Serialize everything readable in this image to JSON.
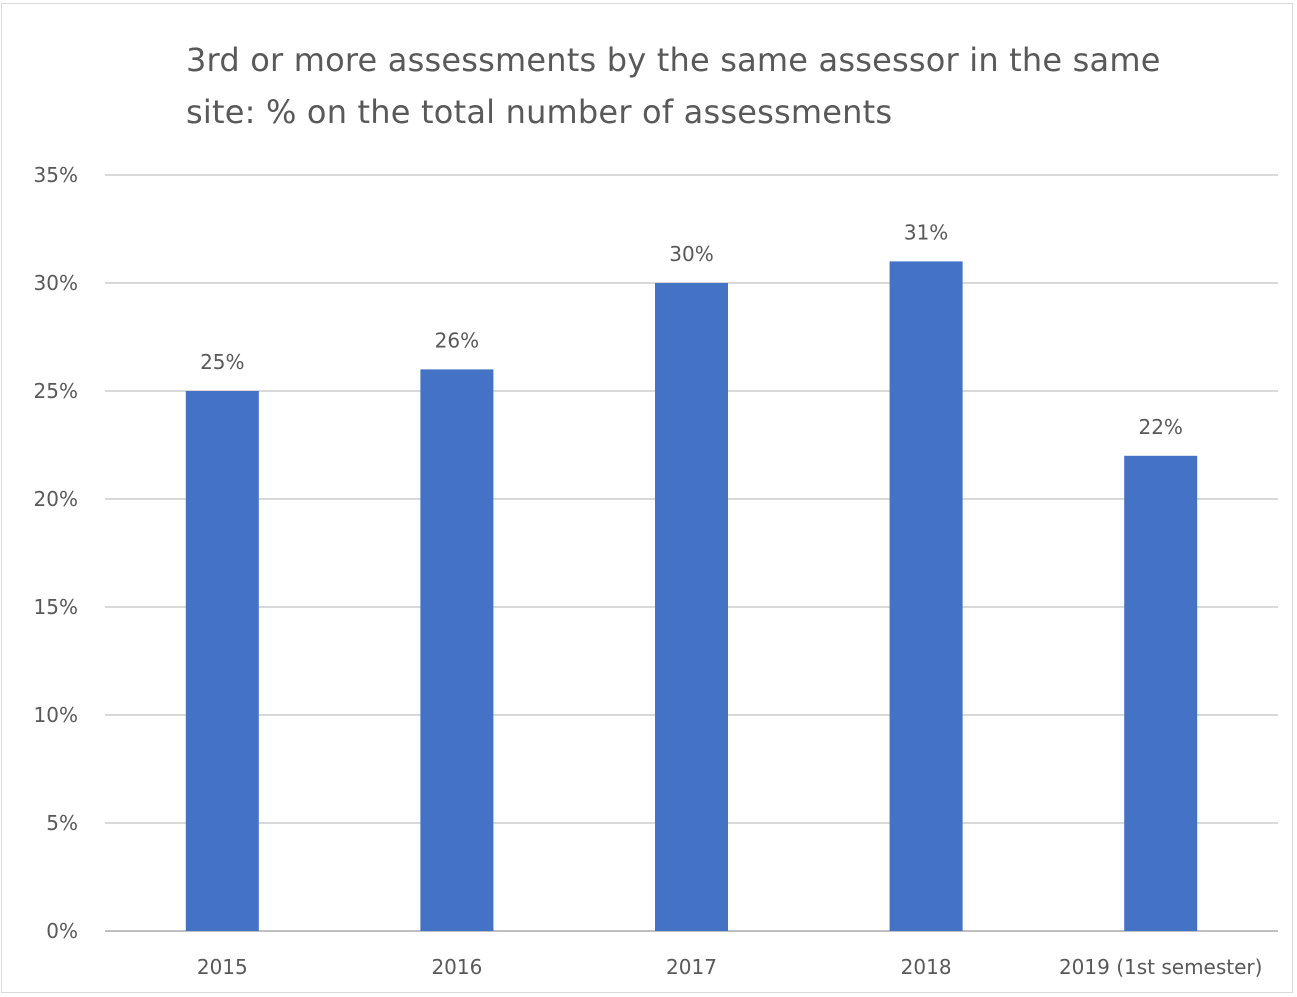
{
  "chart_data": {
    "type": "bar",
    "title": "3rd or more assessments by the same assessor in the same site: % on the total number of assessments",
    "categories": [
      "2015",
      "2016",
      "2017",
      "2018",
      "2019 (1st semester)"
    ],
    "values": [
      25,
      26,
      30,
      31,
      22
    ],
    "value_labels": [
      "25%",
      "26%",
      "30%",
      "31%",
      "22%"
    ],
    "ylim": [
      0,
      35
    ],
    "yticks": [
      0,
      5,
      10,
      15,
      20,
      25,
      30,
      35
    ],
    "ytick_labels": [
      "0%",
      "5%",
      "10%",
      "15%",
      "20%",
      "25%",
      "30%",
      "35%"
    ],
    "xlabel": "",
    "ylabel": "",
    "grid": true,
    "legend": "none",
    "bar_color": "#4472c4",
    "grid_color": "#d9d9d9",
    "text_color": "#595959"
  }
}
